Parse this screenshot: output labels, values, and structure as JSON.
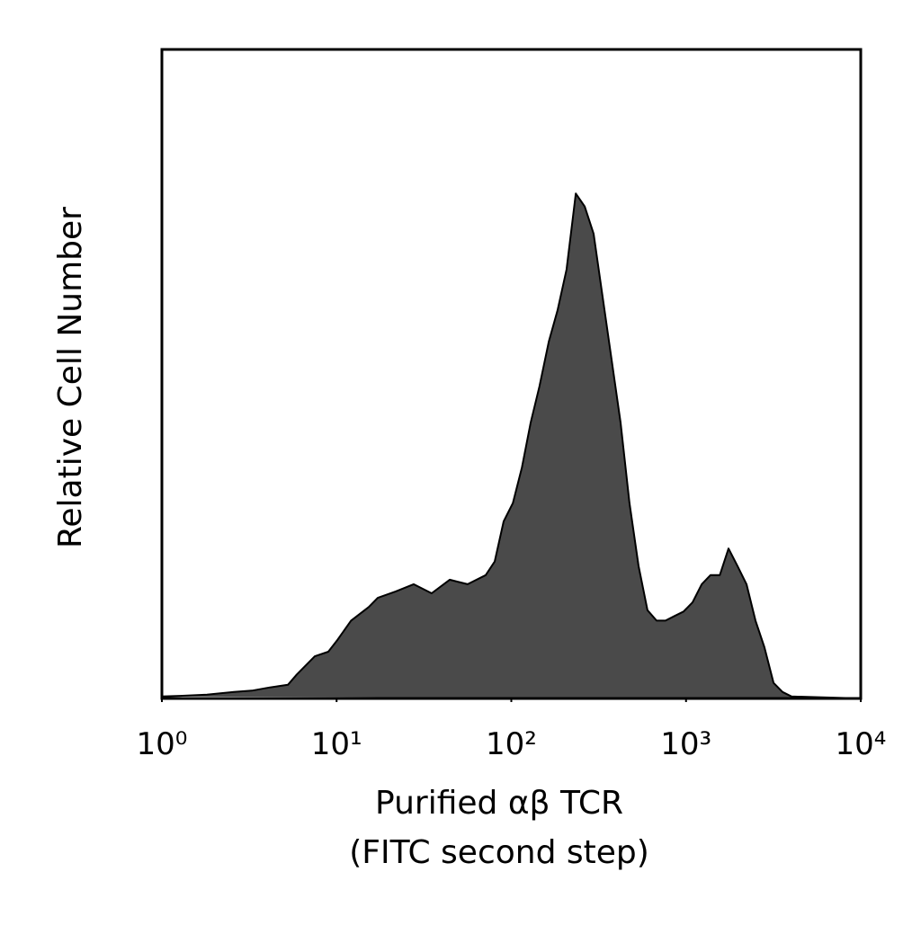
{
  "chart_data": {
    "type": "area",
    "x_label": [
      "Purified αβ TCR",
      "(FITC second step)"
    ],
    "y_label": "Relative Cell Number",
    "xscale": "log",
    "xlim": [
      1,
      10000
    ],
    "ylim": [
      0,
      100
    ],
    "xticks": [
      {
        "value": 1,
        "label": "10⁰"
      },
      {
        "value": 10,
        "label": "10¹"
      },
      {
        "value": 100,
        "label": "10²"
      },
      {
        "value": 1000,
        "label": "10³"
      },
      {
        "value": 10000,
        "label": "10⁴"
      }
    ],
    "color": "#4a4a4a",
    "x": [
      1,
      1.27,
      1.81,
      2.58,
      3.27,
      4.15,
      5.26,
      5.92,
      6.66,
      7.5,
      8.96,
      10.1,
      12.1,
      15.3,
      17.2,
      21.8,
      27.6,
      35,
      44.4,
      56.2,
      71.3,
      80.3,
      90.4,
      102,
      115,
      129,
      145,
      164,
      184,
      207,
      234,
      263,
      296,
      333,
      375,
      422,
      475,
      535,
      602,
      678,
      763,
      859,
      968,
      1090,
      1230,
      1380,
      1560,
      1750,
      1970,
      2220,
      2500,
      2810,
      3170,
      3570,
      4020,
      10000
    ],
    "values": [
      0.3,
      0.4,
      0.6,
      1.0,
      1.2,
      1.7,
      2.1,
      3.7,
      5.1,
      6.5,
      7.2,
      9.0,
      12.0,
      14.1,
      15.5,
      16.5,
      17.6,
      16.2,
      18.3,
      17.6,
      19.0,
      21.1,
      27.3,
      30.1,
      35.6,
      42.5,
      48.1,
      55.0,
      59.8,
      66.1,
      77.8,
      75.8,
      71.6,
      61.9,
      52.2,
      42.5,
      30.1,
      20.4,
      13.6,
      12.0,
      12.0,
      12.7,
      13.4,
      14.8,
      17.6,
      19.0,
      19.0,
      23.1,
      20.4,
      17.6,
      12.0,
      7.9,
      2.4,
      1.0,
      0.3,
      0
    ]
  }
}
